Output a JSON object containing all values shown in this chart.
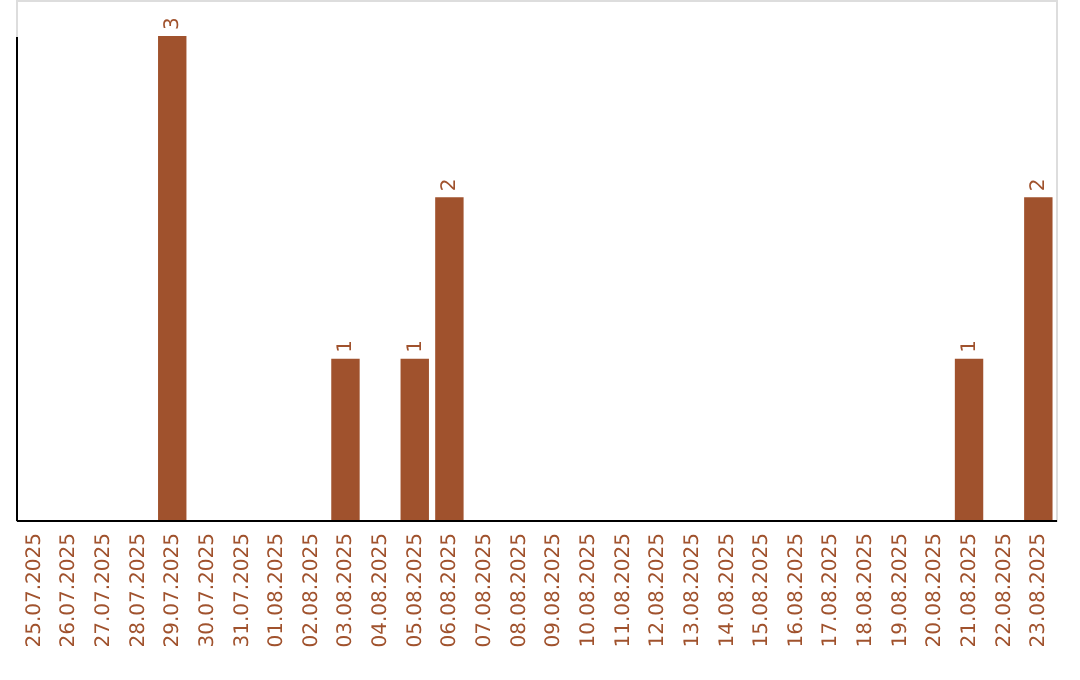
{
  "chart_data": {
    "type": "bar",
    "categories": [
      "25.07.2025",
      "26.07.2025",
      "27.07.2025",
      "28.07.2025",
      "29.07.2025",
      "30.07.2025",
      "31.07.2025",
      "01.08.2025",
      "02.08.2025",
      "03.08.2025",
      "04.08.2025",
      "05.08.2025",
      "06.08.2025",
      "07.08.2025",
      "08.08.2025",
      "09.08.2025",
      "10.08.2025",
      "11.08.2025",
      "12.08.2025",
      "13.08.2025",
      "14.08.2025",
      "15.08.2025",
      "16.08.2025",
      "17.08.2025",
      "18.08.2025",
      "19.08.2025",
      "20.08.2025",
      "21.08.2025",
      "22.08.2025",
      "23.08.2025"
    ],
    "values": [
      0,
      0,
      0,
      0,
      3,
      0,
      0,
      0,
      0,
      1,
      0,
      1,
      2,
      0,
      0,
      0,
      0,
      0,
      0,
      0,
      0,
      0,
      0,
      0,
      0,
      0,
      0,
      1,
      0,
      2
    ],
    "value_labels": [
      null,
      null,
      null,
      null,
      "3",
      null,
      null,
      null,
      null,
      "1",
      null,
      "1",
      "2",
      null,
      null,
      null,
      null,
      null,
      null,
      null,
      null,
      null,
      null,
      null,
      null,
      null,
      null,
      "1",
      null,
      "2"
    ],
    "color": "#a0522d",
    "grid": false
  }
}
